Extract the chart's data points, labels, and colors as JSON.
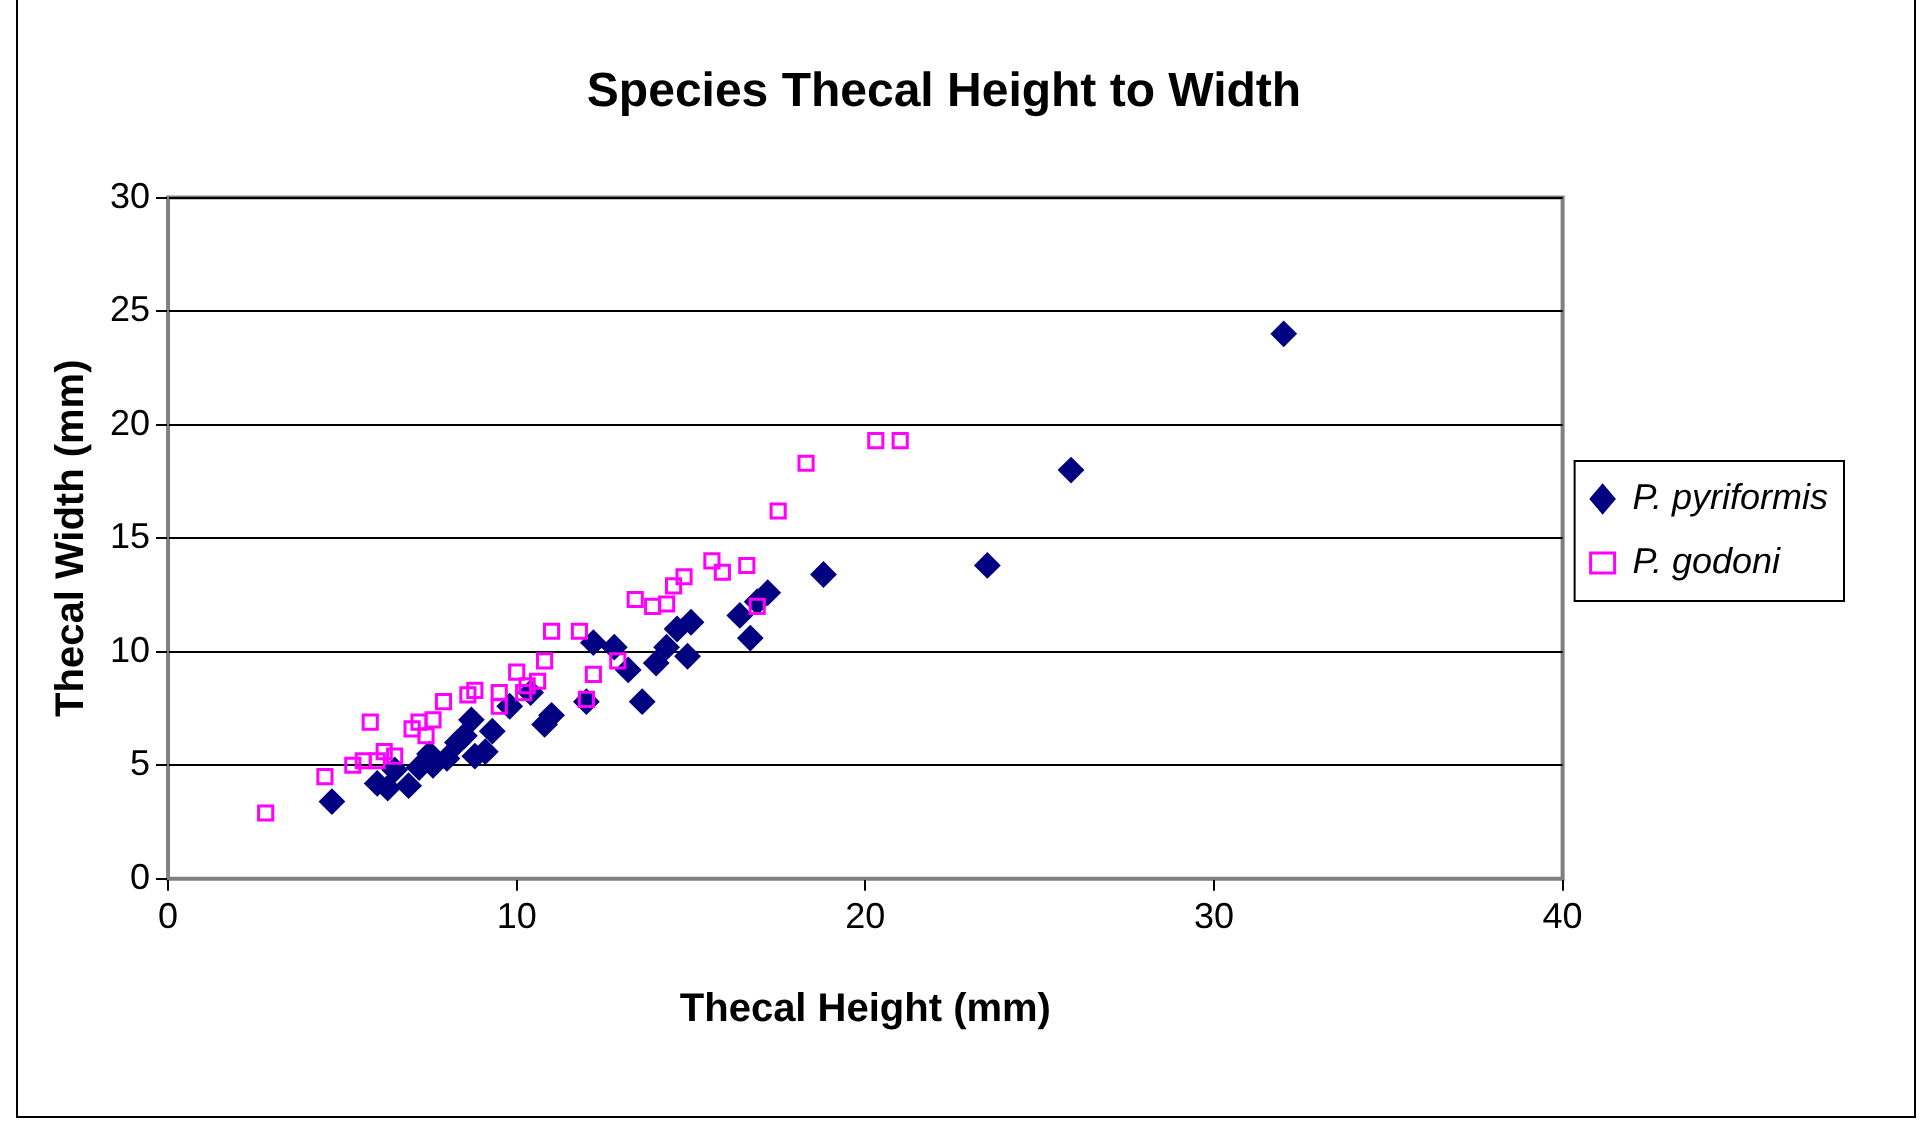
{
  "chart_data": {
    "type": "scatter",
    "title": "Species Thecal Height to Width",
    "xlabel": "Thecal Height (mm)",
    "ylabel": "Thecal Width (mm)",
    "xlim": [
      0,
      40
    ],
    "xticks": [
      0,
      10,
      20,
      30,
      40
    ],
    "ylim": [
      0,
      30
    ],
    "yticks": [
      0,
      5,
      10,
      15,
      20,
      25,
      30
    ],
    "grid": "y",
    "legend": "right",
    "series": [
      {
        "name": "P. pyriformis",
        "color": "#000080",
        "marker": "diamond",
        "x": [
          4.7,
          6,
          6.3,
          6.5,
          6.9,
          7.2,
          7.5,
          7.6,
          8,
          8.3,
          8.5,
          8.7,
          8.8,
          9.1,
          9.3,
          9.8,
          10.4,
          10.8,
          11,
          12,
          12.2,
          12.8,
          13.2,
          13.6,
          14,
          14.3,
          14.6,
          14.9,
          15,
          16.4,
          16.7,
          16.9,
          17.2,
          18.8,
          23.5,
          25.9,
          32
        ],
        "values": [
          3.4,
          4.2,
          4,
          4.8,
          4.1,
          4.9,
          5.5,
          5,
          5.3,
          6,
          6.3,
          7,
          5.4,
          5.6,
          6.5,
          7.6,
          8.2,
          6.8,
          7.2,
          7.8,
          10.4,
          10.2,
          9.2,
          7.8,
          9.5,
          10.2,
          11,
          9.8,
          11.3,
          11.6,
          10.6,
          12.2,
          12.6,
          13.4,
          13.8,
          18,
          24
        ]
      },
      {
        "name": "P. godoni",
        "color": "#ff00ff",
        "marker": "square",
        "x": [
          2.8,
          4.5,
          5.3,
          5.6,
          5.8,
          6,
          6.2,
          6.5,
          7,
          7.2,
          7.4,
          7.6,
          7.9,
          8.6,
          8.8,
          9.5,
          9.5,
          10,
          10.2,
          10.3,
          10.6,
          10.8,
          11,
          11.8,
          12,
          12.2,
          12.9,
          13.4,
          13.9,
          14.3,
          14.5,
          14.8,
          15.6,
          15.9,
          16.6,
          16.9,
          17.5,
          18.3,
          20.3,
          21
        ],
        "values": [
          2.9,
          4.5,
          5,
          5.2,
          6.9,
          5.2,
          5.6,
          5.4,
          6.6,
          6.9,
          6.3,
          7,
          7.8,
          8.1,
          8.3,
          7.6,
          8.2,
          9.1,
          8.2,
          8.5,
          8.7,
          9.6,
          10.9,
          10.9,
          7.9,
          9,
          9.6,
          12.3,
          12,
          12.1,
          12.9,
          13.3,
          14,
          13.5,
          13.8,
          12,
          16.2,
          18.3,
          19.3,
          19.3
        ]
      }
    ]
  }
}
